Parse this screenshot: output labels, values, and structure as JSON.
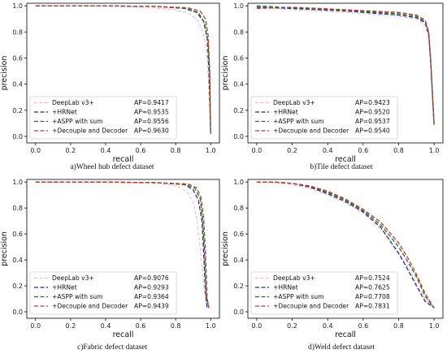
{
  "colors": {
    "DeepLab v3+": "#f4b6c8",
    "+HRNet": "#1f2f9e",
    "+ASPP with sum": "#1f7a1f",
    "+Decouple and Decoder": "#c0392b"
  },
  "chart_data": [
    {
      "type": "line",
      "caption": "a)Wheel hub defect dataset",
      "xlabel": "recall",
      "ylabel": "precision",
      "xlim": [
        -0.05,
        1.05
      ],
      "ylim": [
        -0.05,
        1.02
      ],
      "xticks": [
        "0.0",
        "0.2",
        "0.4",
        "0.6",
        "0.8",
        "1.0"
      ],
      "yticks": [
        "0.0",
        "0.2",
        "0.4",
        "0.6",
        "0.8",
        "1.0"
      ],
      "legend_position": "bottom-left",
      "series": [
        {
          "name": "DeepLab v3+",
          "ap": "AP=0.9417",
          "x": [
            0.0,
            0.3,
            0.6,
            0.8,
            0.88,
            0.93,
            0.96,
            0.98,
            0.99,
            1.0
          ],
          "y": [
            1.0,
            1.0,
            0.99,
            0.97,
            0.94,
            0.88,
            0.78,
            0.6,
            0.35,
            0.05
          ]
        },
        {
          "name": "+HRNet",
          "ap": "AP=0.9535",
          "x": [
            0.0,
            0.4,
            0.7,
            0.85,
            0.92,
            0.96,
            0.98,
            0.99,
            1.0
          ],
          "y": [
            1.0,
            1.0,
            0.995,
            0.98,
            0.95,
            0.88,
            0.75,
            0.5,
            0.02
          ]
        },
        {
          "name": "+ASPP with sum",
          "ap": "AP=0.9556",
          "x": [
            0.0,
            0.4,
            0.7,
            0.86,
            0.93,
            0.965,
            0.985,
            0.995,
            1.0
          ],
          "y": [
            1.0,
            1.0,
            0.995,
            0.98,
            0.95,
            0.87,
            0.72,
            0.45,
            0.02
          ]
        },
        {
          "name": "+Decouple and Decoder",
          "ap": "AP=0.9630",
          "x": [
            0.0,
            0.4,
            0.7,
            0.87,
            0.94,
            0.97,
            0.985,
            0.995,
            1.0
          ],
          "y": [
            1.0,
            1.0,
            0.995,
            0.985,
            0.96,
            0.9,
            0.78,
            0.5,
            0.02
          ]
        }
      ]
    },
    {
      "type": "line",
      "caption": "b)Tile defect dataset",
      "xlabel": "recall",
      "ylabel": "precision",
      "xlim": [
        -0.05,
        1.05
      ],
      "ylim": [
        -0.05,
        1.02
      ],
      "xticks": [
        "0.0",
        "0.2",
        "0.4",
        "0.6",
        "0.8",
        "1.0"
      ],
      "yticks": [
        "0.0",
        "0.2",
        "0.4",
        "0.6",
        "0.8",
        "1.0"
      ],
      "legend_position": "bottom-left",
      "series": [
        {
          "name": "DeepLab v3+",
          "ap": "AP=0.9423",
          "x": [
            0.0,
            0.2,
            0.5,
            0.8,
            0.9,
            0.95,
            0.97,
            0.98,
            0.99,
            1.0
          ],
          "y": [
            0.99,
            0.97,
            0.95,
            0.92,
            0.9,
            0.85,
            0.75,
            0.55,
            0.3,
            0.08
          ]
        },
        {
          "name": "+HRNet",
          "ap": "AP=0.9520",
          "x": [
            0.0,
            0.2,
            0.5,
            0.8,
            0.9,
            0.95,
            0.97,
            0.98,
            0.99,
            1.0
          ],
          "y": [
            0.99,
            0.98,
            0.96,
            0.93,
            0.91,
            0.87,
            0.78,
            0.6,
            0.35,
            0.09
          ]
        },
        {
          "name": "+ASPP with sum",
          "ap": "AP=0.9537",
          "x": [
            0.0,
            0.2,
            0.5,
            0.8,
            0.9,
            0.95,
            0.97,
            0.98,
            0.99,
            1.0
          ],
          "y": [
            1.0,
            0.985,
            0.965,
            0.94,
            0.92,
            0.88,
            0.8,
            0.62,
            0.35,
            0.09
          ]
        },
        {
          "name": "+Decouple and Decoder",
          "ap": "AP=0.9540",
          "x": [
            0.0,
            0.2,
            0.5,
            0.8,
            0.9,
            0.95,
            0.97,
            0.98,
            0.99,
            1.0
          ],
          "y": [
            0.98,
            0.99,
            0.97,
            0.95,
            0.93,
            0.89,
            0.8,
            0.6,
            0.35,
            0.09
          ]
        }
      ]
    },
    {
      "type": "line",
      "caption": "c)Fabric defect dataset",
      "xlabel": "recall",
      "ylabel": "precision",
      "xlim": [
        -0.05,
        1.05
      ],
      "ylim": [
        -0.05,
        1.02
      ],
      "xticks": [
        "0.0",
        "0.2",
        "0.4",
        "0.6",
        "0.8",
        "1.0"
      ],
      "yticks": [
        "0.0",
        "0.2",
        "0.4",
        "0.6",
        "0.8",
        "1.0"
      ],
      "legend_position": "bottom-left",
      "series": [
        {
          "name": "DeepLab v3+",
          "ap": "AP=0.9076",
          "x": [
            0.0,
            0.4,
            0.7,
            0.8,
            0.86,
            0.9,
            0.92,
            0.94,
            0.96,
            0.98
          ],
          "y": [
            1.0,
            1.0,
            0.99,
            0.97,
            0.93,
            0.85,
            0.72,
            0.5,
            0.2,
            0.03
          ]
        },
        {
          "name": "+HRNet",
          "ap": "AP=0.9293",
          "x": [
            0.0,
            0.4,
            0.7,
            0.85,
            0.9,
            0.93,
            0.95,
            0.96,
            0.97,
            0.98
          ],
          "y": [
            1.0,
            1.0,
            0.995,
            0.98,
            0.94,
            0.86,
            0.7,
            0.45,
            0.15,
            0.03
          ]
        },
        {
          "name": "+ASPP with sum",
          "ap": "AP=0.9364",
          "x": [
            0.0,
            0.4,
            0.7,
            0.86,
            0.91,
            0.94,
            0.955,
            0.965,
            0.975,
            0.99
          ],
          "y": [
            1.0,
            1.0,
            0.995,
            0.98,
            0.95,
            0.87,
            0.7,
            0.45,
            0.12,
            0.03
          ]
        },
        {
          "name": "+Decouple and Decoder",
          "ap": "AP=0.9439",
          "x": [
            0.0,
            0.4,
            0.7,
            0.87,
            0.92,
            0.945,
            0.96,
            0.97,
            0.98,
            0.99
          ],
          "y": [
            1.0,
            1.0,
            0.995,
            0.985,
            0.955,
            0.88,
            0.72,
            0.45,
            0.1,
            0.03
          ]
        }
      ]
    },
    {
      "type": "line",
      "caption": "d)Weld defect dataset",
      "xlabel": "recall",
      "ylabel": "precision",
      "xlim": [
        -0.05,
        1.05
      ],
      "ylim": [
        -0.05,
        1.02
      ],
      "xticks": [
        "0.0",
        "0.2",
        "0.4",
        "0.6",
        "0.8",
        "1.0"
      ],
      "yticks": [
        "0.0",
        "0.2",
        "0.4",
        "0.6",
        "0.8",
        "1.0"
      ],
      "legend_position": "bottom-left",
      "series": [
        {
          "name": "DeepLab v3+",
          "ap": "AP=0.7524",
          "x": [
            0.0,
            0.1,
            0.2,
            0.3,
            0.4,
            0.5,
            0.6,
            0.7,
            0.8,
            0.85,
            0.9,
            0.95,
            1.0
          ],
          "y": [
            1.0,
            0.995,
            0.98,
            0.95,
            0.9,
            0.84,
            0.76,
            0.64,
            0.46,
            0.35,
            0.22,
            0.1,
            0.03
          ]
        },
        {
          "name": "+HRNet",
          "ap": "AP=0.7625",
          "x": [
            0.0,
            0.1,
            0.2,
            0.3,
            0.4,
            0.5,
            0.6,
            0.7,
            0.8,
            0.85,
            0.9,
            0.95,
            1.0
          ],
          "y": [
            1.0,
            1.0,
            0.99,
            0.96,
            0.91,
            0.85,
            0.77,
            0.65,
            0.45,
            0.33,
            0.2,
            0.08,
            0.03
          ]
        },
        {
          "name": "+ASPP with sum",
          "ap": "AP=0.7708",
          "x": [
            0.0,
            0.1,
            0.2,
            0.3,
            0.4,
            0.5,
            0.6,
            0.7,
            0.8,
            0.85,
            0.9,
            0.95,
            1.0
          ],
          "y": [
            1.0,
            1.0,
            0.99,
            0.965,
            0.92,
            0.86,
            0.78,
            0.67,
            0.5,
            0.39,
            0.27,
            0.12,
            0.03
          ]
        },
        {
          "name": "+Decouple and Decoder",
          "ap": "AP=0.7831",
          "x": [
            0.0,
            0.1,
            0.2,
            0.3,
            0.4,
            0.5,
            0.6,
            0.7,
            0.8,
            0.85,
            0.9,
            0.95,
            1.0
          ],
          "y": [
            1.0,
            1.0,
            0.99,
            0.97,
            0.93,
            0.87,
            0.79,
            0.69,
            0.53,
            0.42,
            0.29,
            0.14,
            0.03
          ]
        }
      ]
    }
  ]
}
